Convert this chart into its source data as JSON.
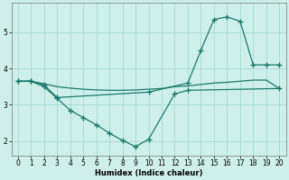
{
  "bg_color": "#cff0ea",
  "grid_color": "#a8ddd6",
  "line_color": "#1a7a6e",
  "xlabel": "Humidex (Indice chaleur)",
  "xlim": [
    -0.5,
    20.5
  ],
  "ylim": [
    1.6,
    5.8
  ],
  "yticks": [
    2,
    3,
    4,
    5
  ],
  "xticks": [
    0,
    1,
    2,
    3,
    4,
    5,
    6,
    7,
    8,
    9,
    10,
    11,
    12,
    13,
    14,
    15,
    16,
    17,
    18,
    19,
    20
  ],
  "line1_x": [
    0,
    1,
    2,
    3,
    10,
    13,
    14,
    15,
    16,
    17,
    18,
    19,
    20
  ],
  "line1_y": [
    3.65,
    3.65,
    3.55,
    3.2,
    3.35,
    3.6,
    4.5,
    5.35,
    5.42,
    5.3,
    4.1,
    4.1,
    4.1
  ],
  "line2_x": [
    0,
    1,
    2,
    3,
    4,
    5,
    6,
    7,
    8,
    9,
    10,
    12,
    13,
    20
  ],
  "line2_y": [
    3.65,
    3.65,
    3.5,
    3.18,
    2.85,
    2.65,
    2.45,
    2.22,
    2.02,
    1.85,
    2.05,
    3.3,
    3.4,
    3.45
  ],
  "line3_x": [
    0,
    1,
    2,
    3,
    4,
    5,
    6,
    7,
    8,
    9,
    10,
    11,
    12,
    13,
    14,
    15,
    16,
    17,
    18,
    19,
    20
  ],
  "line3_y": [
    3.65,
    3.65,
    3.58,
    3.5,
    3.46,
    3.43,
    3.41,
    3.4,
    3.4,
    3.41,
    3.43,
    3.45,
    3.5,
    3.52,
    3.56,
    3.6,
    3.62,
    3.65,
    3.68,
    3.68,
    3.45
  ]
}
